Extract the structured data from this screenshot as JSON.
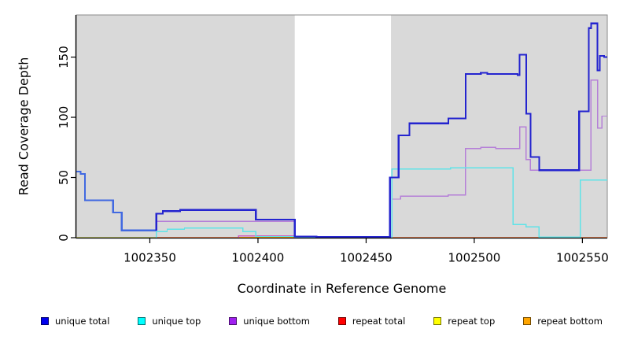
{
  "figure": {
    "background": "#ffffff",
    "panel_background": "#d9d9d9",
    "panel_border_color": "#8a8a8a",
    "axis_color": "#000000",
    "gap_fill": "#ffffff"
  },
  "labels": {
    "ylabel": "Read Coverage Depth",
    "xlabel": "Coordinate in Reference Genome"
  },
  "legend": {
    "items": [
      {
        "label": "unique total",
        "color": "#0000ee"
      },
      {
        "label": "unique top",
        "color": "#00ffff"
      },
      {
        "label": "unique bottom",
        "color": "#a020f0"
      },
      {
        "label": "repeat total",
        "color": "#ff0000"
      },
      {
        "label": "repeat top",
        "color": "#ffff00"
      },
      {
        "label": "repeat bottom",
        "color": "#ffa500"
      }
    ]
  },
  "chart_data": {
    "type": "line",
    "subtype": "step-after-coverage-plot",
    "title": "",
    "xlabel": "Coordinate in Reference Genome",
    "ylabel": "Read Coverage Depth",
    "xlim": [
      1002316,
      1002561.5
    ],
    "ylim": [
      0,
      185
    ],
    "x_ticks": [
      1002350,
      1002400,
      1002450,
      1002500,
      1002550
    ],
    "y_ticks": [
      0,
      50,
      100,
      150
    ],
    "grid": false,
    "legend_position": "bottom",
    "gap_region": {
      "from": 1002417,
      "to": 1002461.5
    },
    "series": [
      {
        "name": "repeat top",
        "line_color": "#f0e000",
        "width": 1,
        "points": [
          [
            1002316,
            0
          ],
          [
            1002561.5,
            0
          ]
        ]
      },
      {
        "name": "repeat bottom",
        "line_color": "#ffa40a",
        "width": 2,
        "points": [
          [
            1002316,
            0
          ],
          [
            1002561.5,
            0
          ]
        ]
      },
      {
        "name": "repeat total",
        "line_color": "#d060c0",
        "width": 1.4,
        "points": [
          [
            1002316,
            0
          ],
          [
            1002391,
            1.5
          ],
          [
            1002417,
            0.5
          ],
          [
            1002461,
            0
          ],
          [
            1002561.5,
            0
          ]
        ]
      },
      {
        "name": "unique bottom",
        "line_color": "#b57fd8",
        "width": 1.4,
        "points": [
          [
            1002316,
            0
          ],
          [
            1002353,
            13.5
          ],
          [
            1002417,
            0.5
          ],
          [
            1002462,
            32
          ],
          [
            1002466,
            34.5
          ],
          [
            1002488,
            35.5
          ],
          [
            1002496,
            74
          ],
          [
            1002503,
            75
          ],
          [
            1002510,
            74
          ],
          [
            1002521,
            92
          ],
          [
            1002524,
            65
          ],
          [
            1002526,
            56
          ],
          [
            1002554,
            131
          ],
          [
            1002557,
            91
          ],
          [
            1002559,
            101
          ],
          [
            1002561.5,
            101
          ]
        ]
      },
      {
        "name": "unique top",
        "line_color": "#5fe3e8",
        "width": 1.4,
        "points": [
          [
            1002316,
            0
          ],
          [
            1002353,
            5
          ],
          [
            1002358,
            7
          ],
          [
            1002366,
            8
          ],
          [
            1002393,
            5
          ],
          [
            1002399,
            1
          ],
          [
            1002417,
            0
          ],
          [
            1002462,
            57
          ],
          [
            1002489,
            58
          ],
          [
            1002518,
            11
          ],
          [
            1002524,
            9
          ],
          [
            1002530,
            0.5
          ],
          [
            1002549,
            48
          ],
          [
            1002561.5,
            48
          ]
        ]
      },
      {
        "name": "unique total",
        "line_color": "#2424cf",
        "left_color": "#4169e1",
        "split_x": 1002353,
        "width": 2.2,
        "points": [
          [
            1002316,
            55
          ],
          [
            1002318,
            53
          ],
          [
            1002320,
            31
          ],
          [
            1002333,
            21
          ],
          [
            1002337,
            6
          ],
          [
            1002353,
            20
          ],
          [
            1002356,
            22
          ],
          [
            1002364,
            23
          ],
          [
            1002399,
            15
          ],
          [
            1002417,
            1
          ],
          [
            1002427,
            0.5
          ],
          [
            1002461,
            50
          ],
          [
            1002465,
            85
          ],
          [
            1002470,
            95
          ],
          [
            1002488,
            99
          ],
          [
            1002496,
            136
          ],
          [
            1002503,
            137
          ],
          [
            1002506,
            136
          ],
          [
            1002520,
            135
          ],
          [
            1002521,
            152
          ],
          [
            1002524,
            103
          ],
          [
            1002526,
            67
          ],
          [
            1002530,
            56
          ],
          [
            1002548.5,
            105
          ],
          [
            1002553,
            174
          ],
          [
            1002554,
            178
          ],
          [
            1002557,
            139
          ],
          [
            1002558,
            151
          ],
          [
            1002560,
            150
          ],
          [
            1002561.5,
            150
          ]
        ]
      }
    ]
  }
}
